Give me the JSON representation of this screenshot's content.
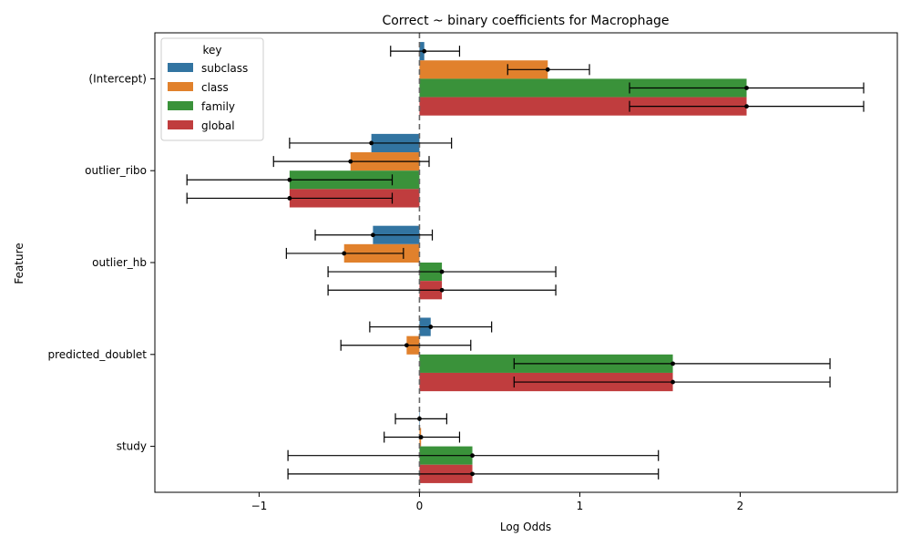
{
  "chart_data": {
    "type": "bar",
    "orientation": "horizontal",
    "title": "Correct ~ binary coefficients for Macrophage",
    "xlabel": "Log Odds",
    "ylabel": "Feature",
    "xlim": [
      -1.65,
      2.98
    ],
    "x_ticks": [
      -1,
      0,
      1,
      2
    ],
    "x_tick_labels": [
      "−1",
      "0",
      "1",
      "2"
    ],
    "reference_line": 0,
    "grid": false,
    "legend_title": "key",
    "legend_position": "top-left",
    "categories": [
      "(Intercept)",
      "outlier_ribo",
      "outlier_hb",
      "predicted_doublet",
      "study"
    ],
    "series": [
      {
        "name": "subclass",
        "color": "#3274a1",
        "values": [
          0.03,
          -0.3,
          -0.29,
          0.07,
          0.0
        ],
        "ci_low": [
          -0.18,
          -0.81,
          -0.65,
          -0.31,
          -0.15
        ],
        "ci_high": [
          0.25,
          0.2,
          0.08,
          0.45,
          0.17
        ]
      },
      {
        "name": "class",
        "color": "#e1812c",
        "values": [
          0.8,
          -0.43,
          -0.47,
          -0.08,
          0.01
        ],
        "ci_low": [
          0.55,
          -0.91,
          -0.83,
          -0.49,
          -0.22
        ],
        "ci_high": [
          1.06,
          0.06,
          -0.1,
          0.32,
          0.25
        ]
      },
      {
        "name": "family",
        "color": "#3a923a",
        "values": [
          2.04,
          -0.81,
          0.14,
          1.58,
          0.33
        ],
        "ci_low": [
          1.31,
          -1.45,
          -0.57,
          0.59,
          -0.82
        ],
        "ci_high": [
          2.77,
          -0.17,
          0.85,
          2.56,
          1.49
        ]
      },
      {
        "name": "global",
        "color": "#c03d3e",
        "values": [
          2.04,
          -0.81,
          0.14,
          1.58,
          0.33
        ],
        "ci_low": [
          1.31,
          -1.45,
          -0.57,
          0.59,
          -0.82
        ],
        "ci_high": [
          2.77,
          -0.17,
          0.85,
          2.56,
          1.49
        ]
      }
    ]
  }
}
